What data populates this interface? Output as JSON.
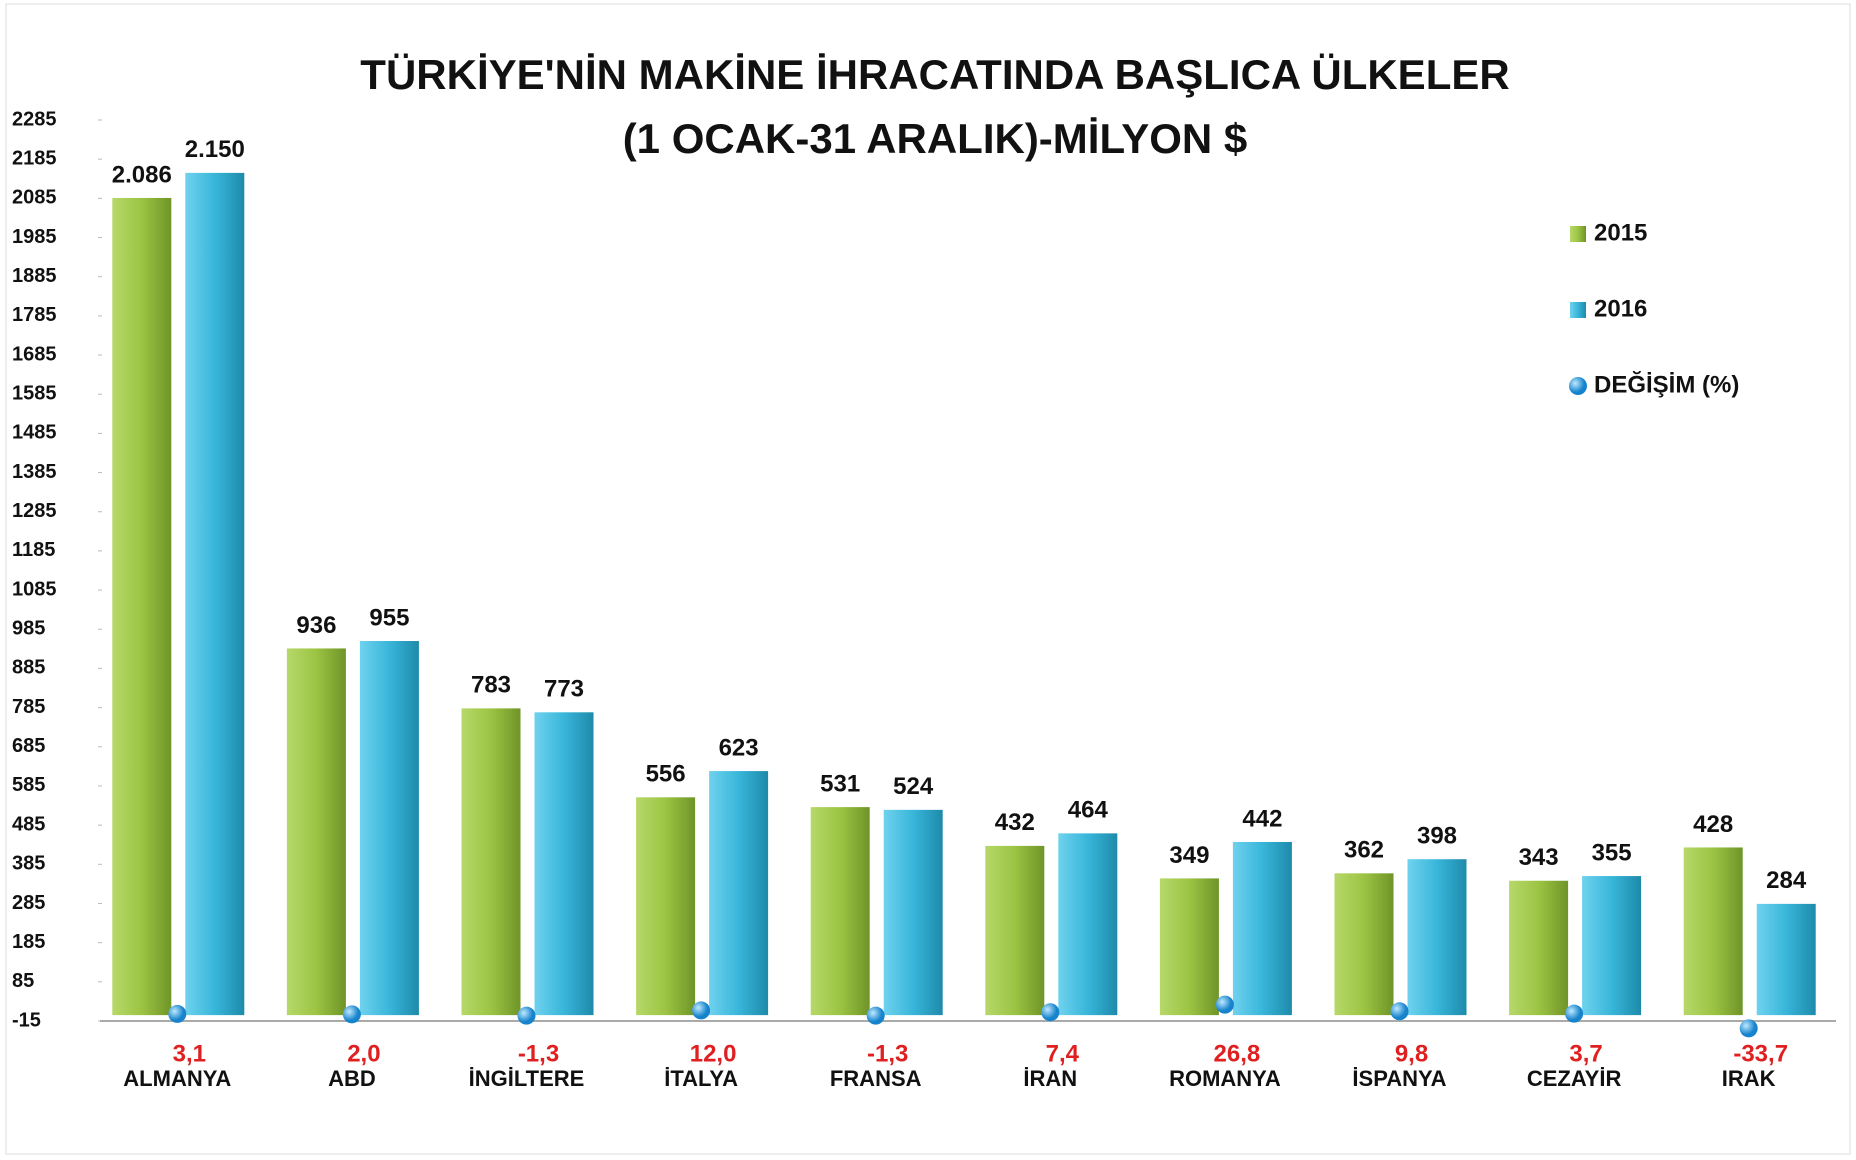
{
  "chart_data": {
    "type": "bar",
    "title": "TÜRKİYE'NİN MAKİNE İHRACATINDA BAŞLICA ÜLKELER",
    "subtitle": "(1 OCAK-31 ARALIK)-MİLYON $",
    "categories": [
      "ALMANYA",
      "ABD",
      "İNGİLTERE",
      "İTALYA",
      "FRANSA",
      "İRAN",
      "ROMANYA",
      "İSPANYA",
      "CEZAYİR",
      "IRAK"
    ],
    "series": [
      {
        "name": "2015",
        "color": "#8fb83a",
        "values": [
          2086,
          936,
          783,
          556,
          531,
          432,
          349,
          362,
          343,
          428
        ],
        "value_labels": [
          "2.086",
          "936",
          "783",
          "556",
          "531",
          "432",
          "349",
          "362",
          "343",
          "428"
        ]
      },
      {
        "name": "2016",
        "color": "#33b4d8",
        "values": [
          2150,
          955,
          773,
          623,
          524,
          464,
          442,
          398,
          355,
          284
        ],
        "value_labels": [
          "2.150",
          "955",
          "773",
          "623",
          "524",
          "464",
          "442",
          "398",
          "355",
          "284"
        ]
      },
      {
        "name": "DEĞİŞİM (%)",
        "color": "#1e9fe0",
        "values": [
          3.1,
          2.0,
          -1.3,
          12.0,
          -1.3,
          7.4,
          26.8,
          9.8,
          3.7,
          -33.7
        ],
        "value_labels": [
          "3,1",
          "2,0",
          "-1,3",
          "12,0",
          "-1,3",
          "7,4",
          "26,8",
          "9,8",
          "3,7",
          "-33,7"
        ]
      }
    ],
    "ylim": [
      -15,
      2285
    ],
    "yticks": [
      -15,
      85,
      185,
      285,
      385,
      485,
      585,
      685,
      785,
      885,
      985,
      1085,
      1185,
      1285,
      1385,
      1485,
      1585,
      1685,
      1785,
      1885,
      1985,
      2085,
      2185,
      2285
    ],
    "legend": "right",
    "grid": false
  }
}
